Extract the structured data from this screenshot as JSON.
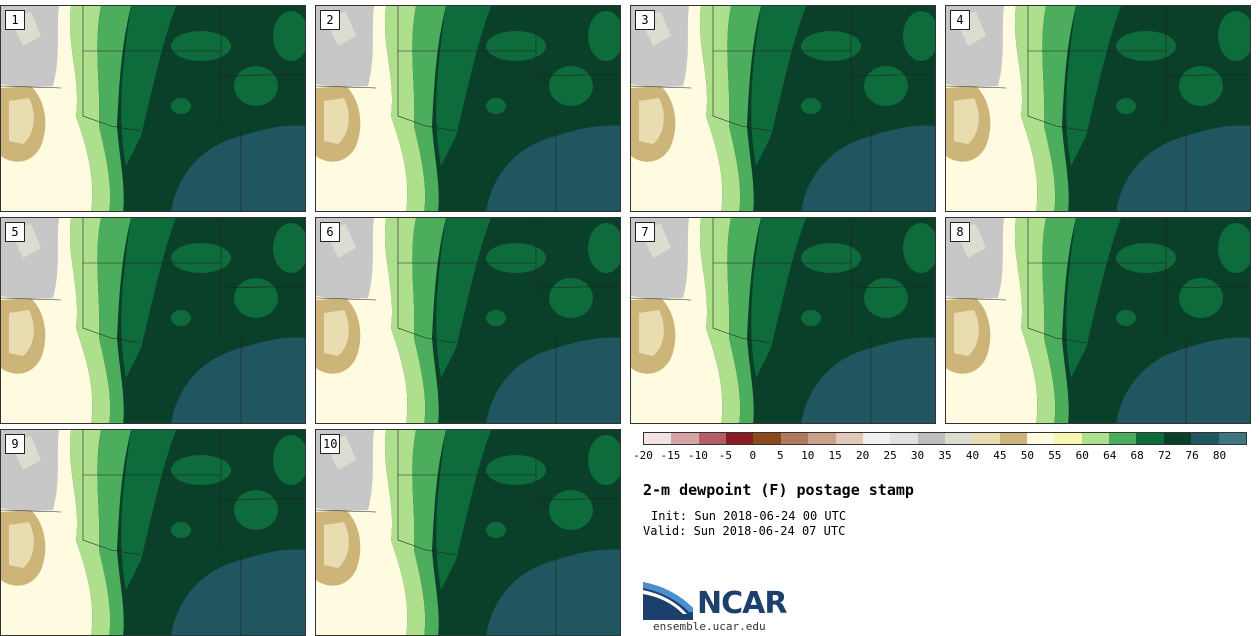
{
  "panels": [
    {
      "label": "1"
    },
    {
      "label": "2"
    },
    {
      "label": "3"
    },
    {
      "label": "4"
    },
    {
      "label": "5"
    },
    {
      "label": "6"
    },
    {
      "label": "7"
    },
    {
      "label": "8"
    },
    {
      "label": "9"
    },
    {
      "label": "10"
    }
  ],
  "colorbar": {
    "colors": [
      "#f3e4e4",
      "#d6a3a6",
      "#b45f66",
      "#8c1c24",
      "#8a4a1c",
      "#b07a5c",
      "#c9a08a",
      "#e0c9b8",
      "#f2f0ee",
      "#e0e0e0",
      "#bdbdbd",
      "#dcdcd0",
      "#e8dcb0",
      "#cdb57a",
      "#fffbe0",
      "#f6f7b0",
      "#addf8c",
      "#4cae5c",
      "#0e6b3c",
      "#0a3f2a",
      "#1f5660",
      "#3d7580"
    ],
    "ticks": [
      "-20",
      "-15",
      "-10",
      "-5",
      "0",
      "5",
      "10",
      "15",
      "20",
      "25",
      "30",
      "35",
      "40",
      "45",
      "50",
      "55",
      "60",
      "64",
      "68",
      "72",
      "76",
      "80"
    ]
  },
  "title": "2-m dewpoint (F) postage stamp",
  "init": "Init: Sun 2018-06-24 00 UTC",
  "valid": "Valid: Sun 2018-06-24 07 UTC",
  "logo": {
    "text": "NCAR",
    "colors": {
      "blue": "#1c3f6e",
      "light_blue": "#4a8fd0"
    }
  },
  "url": "ensemble.ucar.edu"
}
